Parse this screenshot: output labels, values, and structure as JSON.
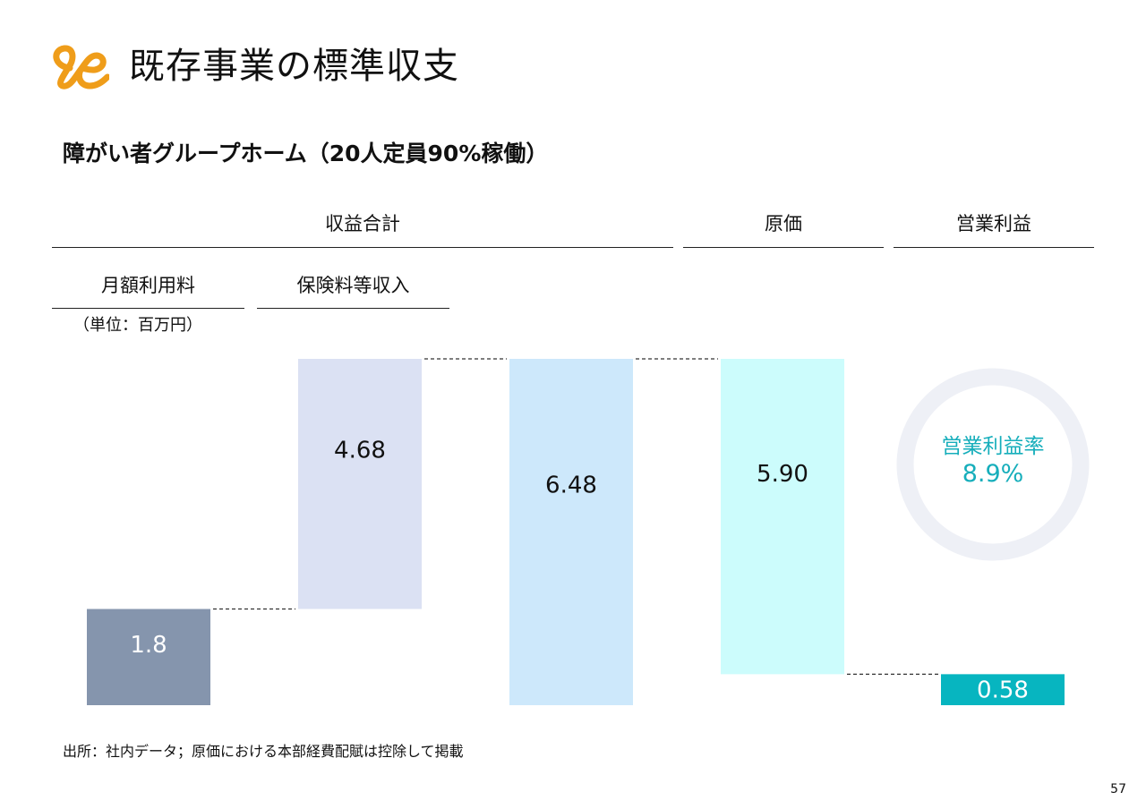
{
  "title": "既存事業の標準収支",
  "subtitle": "障がい者グループホーム（20人定員90%稼働）",
  "headers": {
    "revenue_total": "収益合計",
    "cost": "原価",
    "operating_profit": "営業利益",
    "monthly_fee": "月額利用料",
    "insurance_income": "保険料等収入"
  },
  "unit_note": "（単位：百万円）",
  "source_note": "出所：社内データ；原価における本部経費配賦は控除して掲載",
  "page_number": "57",
  "chart_data": {
    "type": "bar",
    "subtype": "waterfall",
    "unit": "百万円",
    "ylim": [
      0,
      6.48
    ],
    "grid": false,
    "legend": "none",
    "bars": [
      {
        "id": "monthly-fee",
        "header": "月額利用料",
        "label": "1.8",
        "value": 1.8,
        "base": 0,
        "color": "#8595ad",
        "text_color": "#ffffff"
      },
      {
        "id": "insurance-income",
        "header": "保険料等収入",
        "label": "4.68",
        "value": 4.68,
        "base": 1.8,
        "color": "#dbe1f3",
        "text_color": "#111111"
      },
      {
        "id": "revenue-total",
        "header": "収益合計",
        "label": "6.48",
        "value": 6.48,
        "base": 0,
        "color": "#cde8fb",
        "text_color": "#111111"
      },
      {
        "id": "cost",
        "header": "原価",
        "label": "5.90",
        "value": 5.9,
        "base": 0.58,
        "color": "#ccfcfc",
        "text_color": "#111111"
      },
      {
        "id": "operating-profit",
        "header": "営業利益",
        "label": "0.58",
        "value": 0.58,
        "base": 0,
        "color": "#07b5c0",
        "text_color": "#ffffff"
      }
    ],
    "kpi": {
      "label": "営業利益率",
      "value": "8.9%",
      "color": "#16aebb",
      "ring_color": "#eef0f6"
    },
    "colors": {
      "connector": "#333333"
    }
  }
}
